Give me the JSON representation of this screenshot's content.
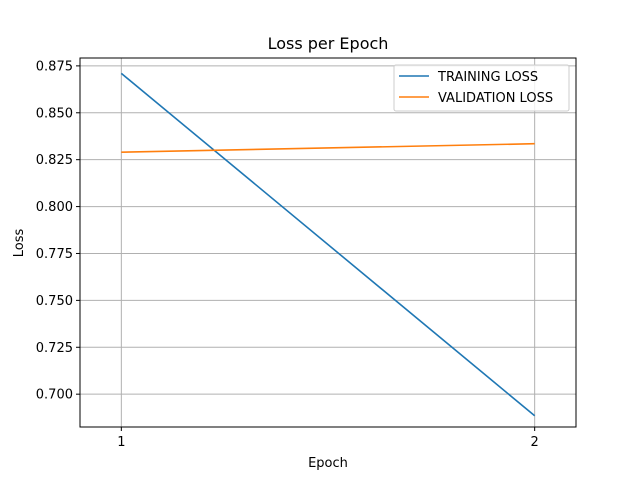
{
  "chart_data": {
    "type": "line",
    "title": "Loss per Epoch",
    "xlabel": "Epoch",
    "ylabel": "Loss",
    "x": [
      1,
      2
    ],
    "xticks": [
      "1",
      "2"
    ],
    "ylim": [
      0.6825,
      0.8792
    ],
    "yticks": [
      0.7,
      0.725,
      0.75,
      0.775,
      0.8,
      0.825,
      0.85,
      0.875
    ],
    "ytick_labels": [
      "0.700",
      "0.725",
      "0.750",
      "0.775",
      "0.800",
      "0.825",
      "0.850",
      "0.875"
    ],
    "grid": true,
    "legend_position": "top-right",
    "series": [
      {
        "name": "TRAINING LOSS",
        "values": [
          0.871,
          0.6885
        ],
        "color": "#1f77b4"
      },
      {
        "name": "VALIDATION LOSS",
        "values": [
          0.829,
          0.8335
        ],
        "color": "#ff7f0e"
      }
    ]
  }
}
